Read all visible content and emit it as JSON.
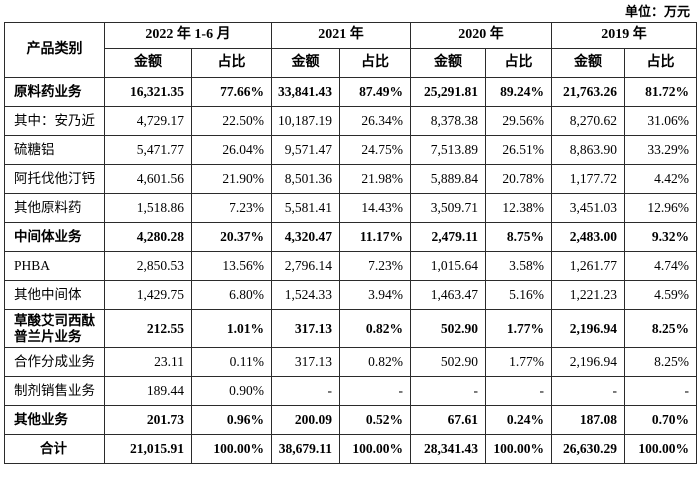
{
  "unit_label": "单位：万元",
  "table": {
    "category_header": "产品类别",
    "year_headers": [
      "2022 年 1-6 月",
      "2021 年",
      "2020 年",
      "2019 年"
    ],
    "col_headers": [
      "金额",
      "占比"
    ],
    "rows": [
      {
        "label": "原料药业务",
        "bold": true,
        "values": [
          "16,321.35",
          "77.66%",
          "33,841.43",
          "87.49%",
          "25,291.81",
          "89.24%",
          "21,763.26",
          "81.72%"
        ]
      },
      {
        "label": "其中：安乃近",
        "bold": false,
        "values": [
          "4,729.17",
          "22.50%",
          "10,187.19",
          "26.34%",
          "8,378.38",
          "29.56%",
          "8,270.62",
          "31.06%"
        ]
      },
      {
        "label": "硫糖铝",
        "bold": false,
        "values": [
          "5,471.77",
          "26.04%",
          "9,571.47",
          "24.75%",
          "7,513.89",
          "26.51%",
          "8,863.90",
          "33.29%"
        ]
      },
      {
        "label": "阿托伐他汀钙",
        "bold": false,
        "values": [
          "4,601.56",
          "21.90%",
          "8,501.36",
          "21.98%",
          "5,889.84",
          "20.78%",
          "1,177.72",
          "4.42%"
        ]
      },
      {
        "label": "其他原料药",
        "bold": false,
        "values": [
          "1,518.86",
          "7.23%",
          "5,581.41",
          "14.43%",
          "3,509.71",
          "12.38%",
          "3,451.03",
          "12.96%"
        ]
      },
      {
        "label": "中间体业务",
        "bold": true,
        "values": [
          "4,280.28",
          "20.37%",
          "4,320.47",
          "11.17%",
          "2,479.11",
          "8.75%",
          "2,483.00",
          "9.32%"
        ]
      },
      {
        "label": "PHBA",
        "bold": false,
        "values": [
          "2,850.53",
          "13.56%",
          "2,796.14",
          "7.23%",
          "1,015.64",
          "3.58%",
          "1,261.77",
          "4.74%"
        ]
      },
      {
        "label": "其他中间体",
        "bold": false,
        "values": [
          "1,429.75",
          "6.80%",
          "1,524.33",
          "3.94%",
          "1,463.47",
          "5.16%",
          "1,221.23",
          "4.59%"
        ]
      },
      {
        "label": "草酸艾司西酞普兰片业务",
        "bold": true,
        "values": [
          "212.55",
          "1.01%",
          "317.13",
          "0.82%",
          "502.90",
          "1.77%",
          "2,196.94",
          "8.25%"
        ]
      },
      {
        "label": "合作分成业务",
        "bold": false,
        "values": [
          "23.11",
          "0.11%",
          "317.13",
          "0.82%",
          "502.90",
          "1.77%",
          "2,196.94",
          "8.25%"
        ]
      },
      {
        "label": "制剂销售业务",
        "bold": false,
        "values": [
          "189.44",
          "0.90%",
          "-",
          "-",
          "-",
          "-",
          "-",
          "-"
        ]
      },
      {
        "label": "其他业务",
        "bold": true,
        "values": [
          "201.73",
          "0.96%",
          "200.09",
          "0.52%",
          "67.61",
          "0.24%",
          "187.08",
          "0.70%"
        ]
      },
      {
        "label": "合计",
        "bold": true,
        "align": "center",
        "values": [
          "21,015.91",
          "100.00%",
          "38,679.11",
          "100.00%",
          "28,341.43",
          "100.00%",
          "26,630.29",
          "100.00%"
        ]
      }
    ]
  }
}
